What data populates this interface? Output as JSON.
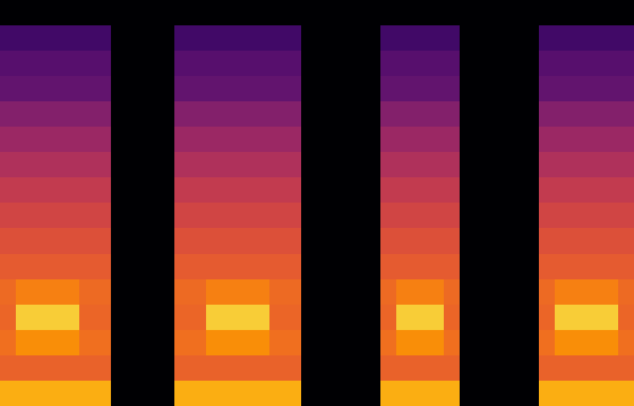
{
  "chart_data": {
    "type": "heatmap",
    "tick_labels": false,
    "clim": [
      0,
      1
    ],
    "cells": [
      [
        0,
        0,
        0,
        0,
        0,
        0,
        0,
        0,
        0,
        0,
        0,
        0,
        0,
        0,
        0,
        0,
        0,
        0,
        0,
        0,
        0,
        0,
        0,
        0,
        0,
        0,
        0,
        0,
        0,
        0,
        0,
        0,
        0,
        0,
        0,
        0,
        0,
        0,
        0,
        0
      ],
      [
        0.2,
        0.2,
        0.2,
        0.2,
        0.2,
        0.2,
        0.2,
        0,
        0,
        0,
        0,
        0.2,
        0.2,
        0.2,
        0.2,
        0.2,
        0.2,
        0.2,
        0.2,
        0,
        0,
        0,
        0,
        0,
        0.2,
        0.2,
        0.2,
        0.2,
        0.2,
        0,
        0,
        0,
        0,
        0,
        0.2,
        0.2,
        0.2,
        0.2,
        0.2,
        0.2
      ],
      [
        0.25,
        0.25,
        0.25,
        0.25,
        0.25,
        0.25,
        0.25,
        0,
        0,
        0,
        0,
        0.25,
        0.25,
        0.25,
        0.25,
        0.25,
        0.25,
        0.25,
        0.25,
        0,
        0,
        0,
        0,
        0,
        0.25,
        0.25,
        0.25,
        0.25,
        0.25,
        0,
        0,
        0,
        0,
        0,
        0.25,
        0.25,
        0.25,
        0.25,
        0.25,
        0.25
      ],
      [
        0.28,
        0.28,
        0.28,
        0.28,
        0.28,
        0.28,
        0.28,
        0,
        0,
        0,
        0,
        0.28,
        0.28,
        0.28,
        0.28,
        0.28,
        0.28,
        0.28,
        0.28,
        0,
        0,
        0,
        0,
        0,
        0.28,
        0.28,
        0.28,
        0.28,
        0.28,
        0,
        0,
        0,
        0,
        0,
        0.28,
        0.28,
        0.28,
        0.28,
        0.28,
        0.28
      ],
      [
        0.36,
        0.36,
        0.36,
        0.36,
        0.36,
        0.36,
        0.36,
        0,
        0,
        0,
        0,
        0.36,
        0.36,
        0.36,
        0.36,
        0.36,
        0.36,
        0.36,
        0.36,
        0,
        0,
        0,
        0,
        0,
        0.36,
        0.36,
        0.36,
        0.36,
        0.36,
        0,
        0,
        0,
        0,
        0,
        0.36,
        0.36,
        0.36,
        0.36,
        0.36,
        0.36
      ],
      [
        0.42,
        0.42,
        0.42,
        0.42,
        0.42,
        0.42,
        0.42,
        0,
        0,
        0,
        0,
        0.42,
        0.42,
        0.42,
        0.42,
        0.42,
        0.42,
        0.42,
        0.42,
        0,
        0,
        0,
        0,
        0,
        0.42,
        0.42,
        0.42,
        0.42,
        0.42,
        0,
        0,
        0,
        0,
        0,
        0.42,
        0.42,
        0.42,
        0.42,
        0.42,
        0.42
      ],
      [
        0.47,
        0.47,
        0.47,
        0.47,
        0.47,
        0.47,
        0.47,
        0,
        0,
        0,
        0,
        0.47,
        0.47,
        0.47,
        0.47,
        0.47,
        0.47,
        0.47,
        0.47,
        0,
        0,
        0,
        0,
        0,
        0.47,
        0.47,
        0.47,
        0.47,
        0.47,
        0,
        0,
        0,
        0,
        0,
        0.47,
        0.47,
        0.47,
        0.47,
        0.47,
        0.47
      ],
      [
        0.52,
        0.52,
        0.52,
        0.52,
        0.52,
        0.52,
        0.52,
        0,
        0,
        0,
        0,
        0.52,
        0.52,
        0.52,
        0.52,
        0.52,
        0.52,
        0.52,
        0.52,
        0,
        0,
        0,
        0,
        0,
        0.52,
        0.52,
        0.52,
        0.52,
        0.52,
        0,
        0,
        0,
        0,
        0,
        0.52,
        0.52,
        0.52,
        0.52,
        0.52,
        0.52
      ],
      [
        0.56,
        0.56,
        0.56,
        0.56,
        0.56,
        0.56,
        0.56,
        0,
        0,
        0,
        0,
        0.56,
        0.56,
        0.56,
        0.56,
        0.56,
        0.56,
        0.56,
        0.56,
        0,
        0,
        0,
        0,
        0,
        0.56,
        0.56,
        0.56,
        0.56,
        0.56,
        0,
        0,
        0,
        0,
        0,
        0.56,
        0.56,
        0.56,
        0.56,
        0.56,
        0.56
      ],
      [
        0.6,
        0.6,
        0.6,
        0.6,
        0.6,
        0.6,
        0.6,
        0,
        0,
        0,
        0,
        0.6,
        0.6,
        0.6,
        0.6,
        0.6,
        0.6,
        0.6,
        0.6,
        0,
        0,
        0,
        0,
        0,
        0.6,
        0.6,
        0.6,
        0.6,
        0.6,
        0,
        0,
        0,
        0,
        0,
        0.6,
        0.6,
        0.6,
        0.6,
        0.6,
        0.6
      ],
      [
        0.63,
        0.63,
        0.63,
        0.63,
        0.63,
        0.63,
        0.63,
        0,
        0,
        0,
        0,
        0.63,
        0.63,
        0.63,
        0.63,
        0.63,
        0.63,
        0.63,
        0.63,
        0,
        0,
        0,
        0,
        0,
        0.63,
        0.63,
        0.63,
        0.63,
        0.63,
        0,
        0,
        0,
        0,
        0,
        0.63,
        0.63,
        0.63,
        0.63,
        0.63,
        0.63
      ],
      [
        0.67,
        0.72,
        0.72,
        0.72,
        0.72,
        0.67,
        0.67,
        0,
        0,
        0,
        0,
        0.67,
        0.67,
        0.72,
        0.72,
        0.72,
        0.72,
        0.67,
        0.67,
        0,
        0,
        0,
        0,
        0,
        0.67,
        0.72,
        0.72,
        0.72,
        0.67,
        0,
        0,
        0,
        0,
        0,
        0.67,
        0.72,
        0.72,
        0.72,
        0.72,
        0.67
      ],
      [
        0.66,
        0.88,
        0.88,
        0.88,
        0.88,
        0.66,
        0.66,
        0,
        0,
        0,
        0,
        0.66,
        0.66,
        0.88,
        0.88,
        0.88,
        0.88,
        0.66,
        0.66,
        0,
        0,
        0,
        0,
        0,
        0.66,
        0.88,
        0.88,
        0.88,
        0.66,
        0,
        0,
        0,
        0,
        0,
        0.66,
        0.88,
        0.88,
        0.88,
        0.88,
        0.66
      ],
      [
        0.68,
        0.75,
        0.75,
        0.75,
        0.75,
        0.68,
        0.68,
        0,
        0,
        0,
        0,
        0.68,
        0.68,
        0.75,
        0.75,
        0.75,
        0.75,
        0.68,
        0.68,
        0,
        0,
        0,
        0,
        0,
        0.68,
        0.75,
        0.75,
        0.75,
        0.68,
        0,
        0,
        0,
        0,
        0,
        0.68,
        0.75,
        0.75,
        0.75,
        0.75,
        0.68
      ],
      [
        0.65,
        0.65,
        0.65,
        0.65,
        0.65,
        0.65,
        0.65,
        0,
        0,
        0,
        0,
        0.65,
        0.65,
        0.65,
        0.65,
        0.65,
        0.65,
        0.65,
        0.65,
        0,
        0,
        0,
        0,
        0,
        0.65,
        0.65,
        0.65,
        0.65,
        0.65,
        0,
        0,
        0,
        0,
        0,
        0.65,
        0.65,
        0.65,
        0.65,
        0.65,
        0.65
      ],
      [
        0.82,
        0.82,
        0.82,
        0.82,
        0.82,
        0.82,
        0.82,
        0,
        0,
        0,
        0,
        0.82,
        0.82,
        0.82,
        0.82,
        0.82,
        0.82,
        0.82,
        0.82,
        0,
        0,
        0,
        0,
        0,
        0.82,
        0.82,
        0.82,
        0.82,
        0.82,
        0,
        0,
        0,
        0,
        0,
        0.82,
        0.82,
        0.82,
        0.82,
        0.82,
        0.82
      ]
    ]
  }
}
